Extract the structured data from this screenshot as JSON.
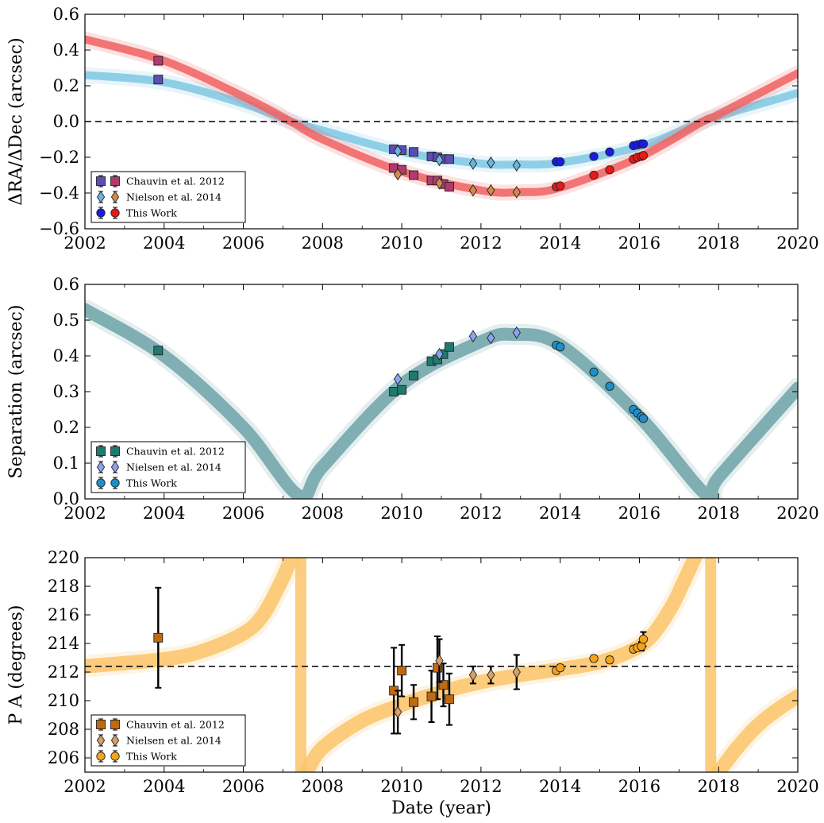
{
  "chart_data": [
    {
      "type": "line",
      "panel": "offsets",
      "xlabel": "",
      "ylabel": "ΔRA/ΔDec (arcsec)",
      "xlim": [
        2002,
        2020
      ],
      "ylim": [
        -0.6,
        0.6
      ],
      "xticks": [
        "2002",
        "2004",
        "2006",
        "2008",
        "2010",
        "2012",
        "2014",
        "2016",
        "2018",
        "2020"
      ],
      "yticks": [
        "−0.6",
        "−0.4",
        "−0.2",
        "0.0",
        "0.2",
        "0.4",
        "0.6"
      ],
      "reference_line": 0.0,
      "legend_position": "lower-left",
      "legend": [
        "Chauvin et al. 2012",
        "Nielson et al. 2014",
        "This Work"
      ],
      "colors": {
        "ra_band": "#7ec8e3",
        "dec_band": "#f06060",
        "ra_chauvin": "#5b4db3",
        "dec_chauvin": "#b03a6e",
        "ra_nielsen": "#6bb5e0",
        "dec_nielsen": "#d28a4a",
        "ra_this": "#1a1ae6",
        "dec_this": "#e61a1a"
      },
      "bands": [
        {
          "name": "ΔRA",
          "x": [
            2002,
            2004,
            2006,
            2007.2,
            2008,
            2010,
            2012,
            2013,
            2014,
            2016,
            2017.6,
            2018,
            2020
          ],
          "y": [
            0.26,
            0.22,
            0.1,
            0.0,
            -0.05,
            -0.17,
            -0.235,
            -0.24,
            -0.23,
            -0.14,
            0.0,
            0.03,
            0.16
          ]
        },
        {
          "name": "ΔDec",
          "x": [
            2002,
            2004,
            2006,
            2007.2,
            2008,
            2010,
            2012,
            2013,
            2014,
            2016,
            2017.6,
            2018,
            2020
          ],
          "y": [
            0.46,
            0.34,
            0.14,
            0.0,
            -0.1,
            -0.28,
            -0.385,
            -0.395,
            -0.37,
            -0.2,
            0.0,
            0.04,
            0.27
          ]
        }
      ],
      "series": [
        {
          "group": "Chauvin et al. 2012",
          "component": "ΔRA",
          "marker": "square",
          "x": [
            2003.85,
            2009.8,
            2010.0,
            2010.3,
            2010.75,
            2010.9,
            2011.05,
            2011.2
          ],
          "y": [
            0.235,
            -0.155,
            -0.16,
            -0.17,
            -0.195,
            -0.2,
            -0.21,
            -0.21
          ]
        },
        {
          "group": "Chauvin et al. 2012",
          "component": "ΔDec",
          "marker": "square",
          "x": [
            2003.85,
            2009.8,
            2010.0,
            2010.3,
            2010.75,
            2010.9,
            2011.05,
            2011.2
          ],
          "y": [
            0.34,
            -0.26,
            -0.27,
            -0.3,
            -0.33,
            -0.33,
            -0.35,
            -0.365
          ]
        },
        {
          "group": "Nielson et al. 2014",
          "component": "ΔRA",
          "marker": "diamond",
          "x": [
            2009.9,
            2010.95,
            2011.8,
            2012.25,
            2012.9
          ],
          "y": [
            -0.165,
            -0.215,
            -0.235,
            -0.23,
            -0.245
          ]
        },
        {
          "group": "Nielson et al. 2014",
          "component": "ΔDec",
          "marker": "diamond",
          "x": [
            2009.9,
            2010.95,
            2011.8,
            2012.25,
            2012.9
          ],
          "y": [
            -0.295,
            -0.345,
            -0.385,
            -0.385,
            -0.395
          ]
        },
        {
          "group": "This Work",
          "component": "ΔRA",
          "marker": "circle",
          "x": [
            2013.9,
            2014.0,
            2014.85,
            2015.25,
            2015.85,
            2015.95,
            2016.05,
            2016.1
          ],
          "y": [
            -0.225,
            -0.225,
            -0.195,
            -0.17,
            -0.135,
            -0.13,
            -0.125,
            -0.125
          ]
        },
        {
          "group": "This Work",
          "component": "ΔDec",
          "marker": "circle",
          "x": [
            2013.9,
            2014.0,
            2014.85,
            2015.25,
            2015.85,
            2015.95,
            2016.05,
            2016.1
          ],
          "y": [
            -0.365,
            -0.36,
            -0.3,
            -0.27,
            -0.21,
            -0.2,
            -0.195,
            -0.19
          ]
        }
      ]
    },
    {
      "type": "line",
      "panel": "separation",
      "xlabel": "",
      "ylabel": "Separation (arcsec)",
      "xlim": [
        2002,
        2020
      ],
      "ylim": [
        0.0,
        0.6
      ],
      "xticks": [
        "2002",
        "2004",
        "2006",
        "2008",
        "2010",
        "2012",
        "2014",
        "2016",
        "2018",
        "2020"
      ],
      "yticks": [
        "0.0",
        "0.1",
        "0.2",
        "0.3",
        "0.4",
        "0.5",
        "0.6"
      ],
      "legend_position": "lower-left",
      "legend": [
        "Chauvin et al. 2012",
        "Nielsen et al. 2014",
        "This Work"
      ],
      "colors": {
        "band": "#6fa3a8",
        "chauvin": "#1f7a6e",
        "nielsen": "#8aa4f0",
        "this": "#1e8fc8"
      },
      "bands": [
        {
          "name": "Separation",
          "x": [
            2002,
            2004,
            2006,
            2007.4,
            2008,
            2010,
            2012,
            2012.8,
            2014,
            2016,
            2017.7,
            2018,
            2020
          ],
          "y": [
            0.53,
            0.4,
            0.2,
            0.01,
            0.09,
            0.32,
            0.44,
            0.46,
            0.43,
            0.23,
            0.01,
            0.06,
            0.31
          ]
        }
      ],
      "series": [
        {
          "group": "Chauvin et al. 2012",
          "marker": "square",
          "x": [
            2003.85,
            2009.8,
            2010.0,
            2010.3,
            2010.75,
            2010.9,
            2011.05,
            2011.2
          ],
          "y": [
            0.415,
            0.3,
            0.305,
            0.345,
            0.385,
            0.39,
            0.405,
            0.425
          ]
        },
        {
          "group": "Nielsen et al. 2014",
          "marker": "diamond",
          "x": [
            2009.9,
            2010.95,
            2011.8,
            2012.25,
            2012.9
          ],
          "y": [
            0.335,
            0.405,
            0.455,
            0.45,
            0.465
          ]
        },
        {
          "group": "This Work",
          "marker": "circle",
          "x": [
            2013.9,
            2014.0,
            2014.85,
            2015.25,
            2015.85,
            2015.95,
            2016.05,
            2016.1
          ],
          "y": [
            0.43,
            0.425,
            0.355,
            0.315,
            0.25,
            0.24,
            0.23,
            0.225
          ]
        }
      ]
    },
    {
      "type": "line",
      "panel": "position-angle",
      "xlabel": "Date (year)",
      "ylabel": "P A (degrees)",
      "xlim": [
        2002,
        2020
      ],
      "ylim": [
        205,
        220
      ],
      "xticks": [
        "2002",
        "2004",
        "2006",
        "2008",
        "2010",
        "2012",
        "2014",
        "2016",
        "2018",
        "2020"
      ],
      "yticks": [
        "206",
        "208",
        "210",
        "212",
        "214",
        "216",
        "218",
        "220"
      ],
      "reference_line": 212.4,
      "legend_position": "lower-left",
      "legend": [
        "Chauvin et al. 2012",
        "Nielsen et al. 2014",
        "This Work"
      ],
      "colors": {
        "band": "#fbc46a",
        "chauvin": "#c06a10",
        "nielsen": "#d6a06a",
        "this": "#f5a31a"
      },
      "bands": [
        {
          "name": "PA branch 1",
          "x": [
            2002,
            2004,
            2005,
            2006,
            2006.5,
            2007.0,
            2007.2
          ],
          "y": [
            212.4,
            212.9,
            213.5,
            214.7,
            216.0,
            218.6,
            220.0
          ]
        },
        {
          "name": "PA branch 2",
          "x": [
            2007.6,
            2008.0,
            2009,
            2010,
            2011,
            2012,
            2013,
            2014,
            2015,
            2015.8,
            2016.3,
            2016.8,
            2017.1,
            2017.4
          ],
          "y": [
            205.0,
            206.7,
            208.6,
            209.7,
            210.6,
            211.3,
            211.8,
            212.2,
            212.7,
            213.5,
            214.5,
            216.5,
            218.2,
            220.0
          ]
        },
        {
          "name": "PA branch 3",
          "x": [
            2018.0,
            2018.5,
            2019.0,
            2019.5,
            2020
          ],
          "y": [
            205.0,
            206.8,
            208.3,
            209.4,
            210.3
          ]
        }
      ],
      "vertical_bands": [
        2007.45,
        2017.8
      ],
      "series": [
        {
          "group": "Chauvin et al. 2012",
          "marker": "square",
          "x": [
            2003.85,
            2009.8,
            2010.0,
            2010.3,
            2010.75,
            2010.9,
            2011.05,
            2011.2
          ],
          "y": [
            214.4,
            210.7,
            212.1,
            209.9,
            210.3,
            212.3,
            211.1,
            210.1
          ],
          "err": [
            3.5,
            3.0,
            1.8,
            1.2,
            1.8,
            2.2,
            1.5,
            1.8
          ]
        },
        {
          "group": "Nielsen et al. 2014",
          "marker": "diamond",
          "x": [
            2009.9,
            2010.95,
            2011.8,
            2012.25,
            2012.9
          ],
          "y": [
            209.2,
            212.8,
            211.8,
            211.8,
            212.0
          ],
          "err": [
            1.5,
            1.5,
            0.6,
            0.6,
            1.2
          ]
        },
        {
          "group": "This Work",
          "marker": "circle",
          "x": [
            2013.9,
            2014.0,
            2014.85,
            2015.25,
            2015.85,
            2015.95,
            2016.05,
            2016.1
          ],
          "y": [
            212.1,
            212.3,
            212.95,
            212.85,
            213.6,
            213.7,
            213.8,
            214.3
          ],
          "err": [
            0.2,
            0.2,
            0.2,
            0.2,
            0.2,
            0.2,
            0.3,
            0.5
          ]
        }
      ]
    }
  ]
}
